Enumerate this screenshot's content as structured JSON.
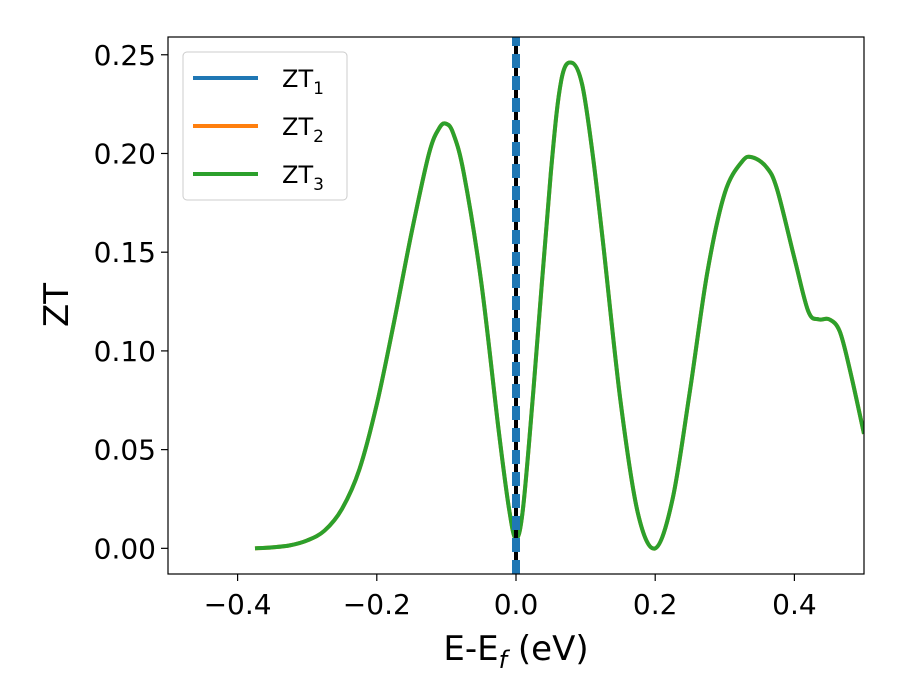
{
  "chart_data": {
    "type": "line",
    "xlabel": "E-E",
    "xlabel_sub": "f",
    "xlabel_unit": " (eV)",
    "ylabel": "ZT",
    "xlim": [
      -0.5,
      0.5
    ],
    "ylim": [
      -0.013,
      0.259
    ],
    "xticks": [
      -0.4,
      -0.2,
      0.0,
      0.2,
      0.4
    ],
    "xtick_labels": [
      "−0.4",
      "−0.2",
      "0.0",
      "0.2",
      "0.4"
    ],
    "yticks": [
      0.0,
      0.05,
      0.1,
      0.15,
      0.2,
      0.25
    ],
    "ytick_labels": [
      "0.00",
      "0.05",
      "0.10",
      "0.15",
      "0.20",
      "0.25"
    ],
    "grid": false,
    "legend_position": "top-left",
    "vertical_line": {
      "x": 0.0,
      "color": "#000000",
      "style": "dashed"
    },
    "series": [
      {
        "name": "ZT",
        "sub": "1",
        "color": "#1f77b4",
        "style": "dashed-vertical",
        "x": [
          0.0,
          0.0
        ],
        "y": [
          -0.013,
          0.259
        ]
      },
      {
        "name": "ZT",
        "sub": "2",
        "color": "#ff7f0e",
        "style": "solid",
        "x": [
          -0.375,
          -0.35,
          -0.325,
          -0.3,
          -0.275,
          -0.25,
          -0.225,
          -0.2,
          -0.175,
          -0.15,
          -0.125,
          -0.11,
          -0.1,
          -0.09,
          -0.075,
          -0.05,
          -0.025,
          -0.01,
          0.0,
          0.01,
          0.025,
          0.05,
          0.065,
          0.08,
          0.095,
          0.11,
          0.125,
          0.15,
          0.175,
          0.2,
          0.225,
          0.25,
          0.275,
          0.3,
          0.325,
          0.34,
          0.36,
          0.375,
          0.4,
          0.42,
          0.435,
          0.45,
          0.465,
          0.48,
          0.5
        ],
        "y": [
          0.0,
          0.0005,
          0.0015,
          0.004,
          0.009,
          0.02,
          0.04,
          0.073,
          0.115,
          0.16,
          0.2,
          0.213,
          0.215,
          0.21,
          0.19,
          0.135,
          0.06,
          0.02,
          0.005,
          0.02,
          0.08,
          0.19,
          0.237,
          0.246,
          0.235,
          0.2,
          0.155,
          0.075,
          0.018,
          0.0,
          0.025,
          0.08,
          0.14,
          0.18,
          0.196,
          0.198,
          0.193,
          0.182,
          0.147,
          0.12,
          0.116,
          0.116,
          0.11,
          0.09,
          0.058
        ]
      },
      {
        "name": "ZT",
        "sub": "3",
        "color": "#2ca02c",
        "style": "solid",
        "x": [
          -0.375,
          -0.35,
          -0.325,
          -0.3,
          -0.275,
          -0.25,
          -0.225,
          -0.2,
          -0.175,
          -0.15,
          -0.125,
          -0.11,
          -0.1,
          -0.09,
          -0.075,
          -0.05,
          -0.025,
          -0.01,
          0.0,
          0.01,
          0.025,
          0.05,
          0.065,
          0.08,
          0.095,
          0.11,
          0.125,
          0.15,
          0.175,
          0.2,
          0.225,
          0.25,
          0.275,
          0.3,
          0.325,
          0.34,
          0.36,
          0.375,
          0.4,
          0.42,
          0.435,
          0.45,
          0.465,
          0.48,
          0.5
        ],
        "y": [
          0.0,
          0.0005,
          0.0015,
          0.004,
          0.009,
          0.02,
          0.04,
          0.073,
          0.115,
          0.16,
          0.2,
          0.213,
          0.215,
          0.21,
          0.19,
          0.135,
          0.06,
          0.02,
          0.005,
          0.02,
          0.08,
          0.19,
          0.237,
          0.246,
          0.235,
          0.2,
          0.155,
          0.075,
          0.018,
          0.0,
          0.025,
          0.08,
          0.14,
          0.18,
          0.196,
          0.198,
          0.193,
          0.182,
          0.147,
          0.12,
          0.116,
          0.116,
          0.11,
          0.09,
          0.058
        ]
      }
    ]
  }
}
